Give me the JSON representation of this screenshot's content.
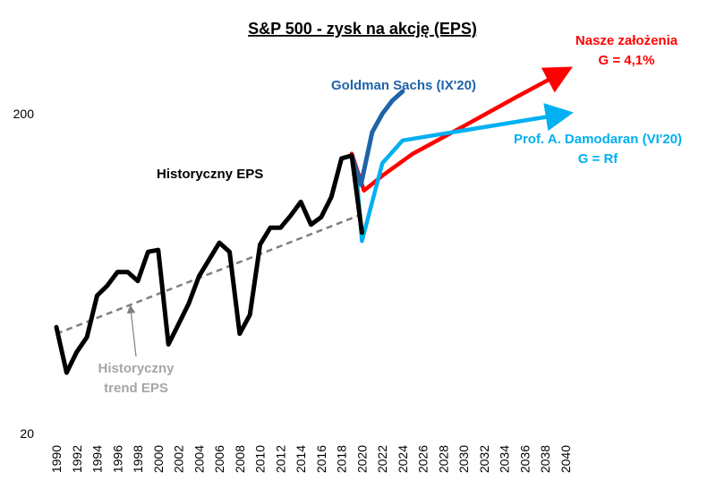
{
  "chart_data": {
    "type": "line",
    "title": "S&P 500 - zysk na akcję (EPS)",
    "y_scale": "log",
    "ylim": [
      20,
      400
    ],
    "y_ticks": [
      "20",
      "200"
    ],
    "y_tick_values": [
      20,
      200
    ],
    "xlim": [
      1990,
      2040
    ],
    "x_ticks": [
      "1990",
      "1992",
      "1994",
      "1996",
      "1998",
      "2000",
      "2002",
      "2004",
      "2006",
      "2008",
      "2010",
      "2012",
      "2014",
      "2016",
      "2018",
      "2020",
      "2022",
      "2024",
      "2026",
      "2028",
      "2030",
      "2032",
      "2034",
      "2036",
      "2038",
      "2040"
    ],
    "grid": false,
    "series": [
      {
        "name": "Historyczny EPS",
        "color": "#000000",
        "style": "solid",
        "x": [
          1990,
          1991,
          1992,
          1993,
          1994,
          1995,
          1996,
          1997,
          1998,
          1999,
          2000,
          2001,
          2002,
          2003,
          2004,
          2005,
          2006,
          2007,
          2008,
          2009,
          2010,
          2011,
          2012,
          2013,
          2014,
          2015,
          2016,
          2017,
          2018,
          2019,
          2020
        ],
        "y": [
          43,
          31,
          36,
          40,
          54,
          58,
          64,
          64,
          60,
          74,
          75,
          38,
          44,
          51,
          62,
          70,
          79,
          74,
          41,
          47,
          78,
          88,
          88,
          96,
          106,
          90,
          95,
          110,
          145,
          148,
          85
        ]
      },
      {
        "name": "Historyczny trend EPS",
        "color": "#808080",
        "style": "dashed",
        "x": [
          1990,
          2020
        ],
        "y": [
          41,
          97
        ]
      },
      {
        "name": "Goldman Sachs (IX'20)",
        "color": "#1F63A8",
        "style": "solid",
        "x": [
          2019,
          2019.9,
          2021,
          2022,
          2023,
          2024
        ],
        "y": [
          148,
          120,
          175,
          200,
          220,
          235
        ]
      },
      {
        "name": "Nasze założenia",
        "color": "#FF0000",
        "style": "arrow",
        "x": [
          2019,
          2020.2,
          2022,
          2025,
          2030,
          2035,
          2040
        ],
        "y": [
          150,
          115,
          128,
          150,
          183,
          224,
          273
        ]
      },
      {
        "name": "Prof. A. Damodaran (VI'20)",
        "color": "#00B0F0",
        "style": "arrow",
        "x": [
          2019.5,
          2020,
          2022,
          2024,
          2040
        ],
        "y": [
          125,
          80,
          140,
          165,
          200
        ]
      }
    ],
    "annotations": {
      "historical": "Historyczny EPS",
      "trend_line1": "Historyczny",
      "trend_line2": "trend EPS",
      "goldman": "Goldman Sachs (IX'20)",
      "ours_line1": "Nasze założenia",
      "ours_line2": "G = 4,1%",
      "damodaran_line1": "Prof. A. Damodaran (VI'20)",
      "damodaran_line2": "G = Rf"
    }
  }
}
